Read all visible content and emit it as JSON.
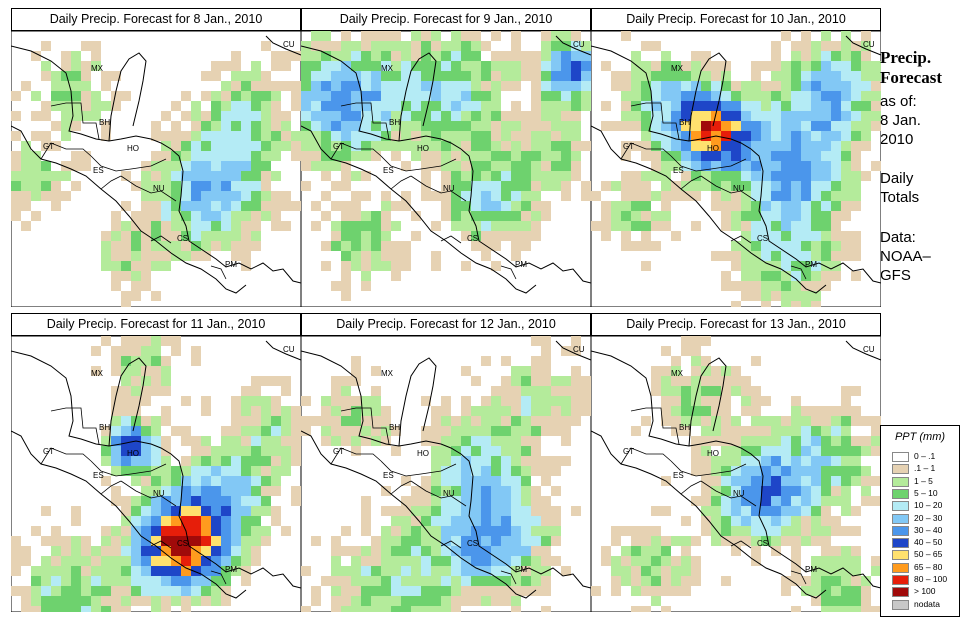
{
  "panels": [
    {
      "title": "Daily Precip. Forecast for  8 Jan., 2010"
    },
    {
      "title": "Daily Precip. Forecast for  9 Jan., 2010"
    },
    {
      "title": "Daily Precip. Forecast for  10 Jan., 2010"
    },
    {
      "title": "Daily Precip. Forecast for  11 Jan., 2010"
    },
    {
      "title": "Daily Precip. Forecast for  12 Jan., 2010"
    },
    {
      "title": "Daily Precip. Forecast for  13 Jan., 2010"
    }
  ],
  "country_labels": [
    "CU",
    "MX",
    "BH",
    "GT",
    "HO",
    "ES",
    "NU",
    "CS",
    "PM"
  ],
  "side": {
    "title_line1": "Precip.",
    "title_line2": "Forecast",
    "asof_1": "as of:",
    "asof_2": "8 Jan.",
    "asof_3": "2010",
    "daily_1": "Daily",
    "daily_2": "Totals",
    "data_1": "Data:",
    "data_2": "NOAA–",
    "data_3": "GFS"
  },
  "legend": {
    "title": "PPT (mm)",
    "items": [
      {
        "label": "0 – .1",
        "color": "#ffffff"
      },
      {
        "label": ".1 – 1",
        "color": "#e6d2b3"
      },
      {
        "label": "1 – 5",
        "color": "#b4eb9b"
      },
      {
        "label": "5 – 10",
        "color": "#6ed26e"
      },
      {
        "label": "10 – 20",
        "color": "#b4ebf5"
      },
      {
        "label": "20 – 30",
        "color": "#82c8f5"
      },
      {
        "label": "30 – 40",
        "color": "#4b96eb"
      },
      {
        "label": "40 – 50",
        "color": "#1e46c8"
      },
      {
        "label": "50 – 65",
        "color": "#ffe16e"
      },
      {
        "label": "65 – 80",
        "color": "#ff9b1e"
      },
      {
        "label": "80 – 100",
        "color": "#e61e0a"
      },
      {
        "label": "> 100",
        "color": "#a00a0a"
      },
      {
        "label": "nodata",
        "color": "#c8c8c8"
      }
    ]
  }
}
